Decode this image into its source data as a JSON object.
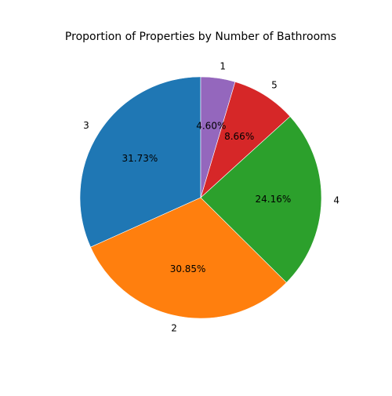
{
  "chart_data": {
    "type": "pie",
    "title": "Proportion of Properties by Number of Bathrooms",
    "slices": [
      {
        "label": "3",
        "percent": 31.73,
        "percent_label": "31.73%",
        "color": "#1f77b4"
      },
      {
        "label": "2",
        "percent": 30.85,
        "percent_label": "30.85%",
        "color": "#ff7f0e"
      },
      {
        "label": "4",
        "percent": 24.16,
        "percent_label": "24.16%",
        "color": "#2ca02c"
      },
      {
        "label": "5",
        "percent": 8.66,
        "percent_label": "8.66%",
        "color": "#d62728"
      },
      {
        "label": "1",
        "percent": 4.6,
        "percent_label": "4.60%",
        "color": "#9467bd"
      }
    ],
    "start_angle_deg": 90,
    "direction": "counterclockwise",
    "legend": "none"
  }
}
